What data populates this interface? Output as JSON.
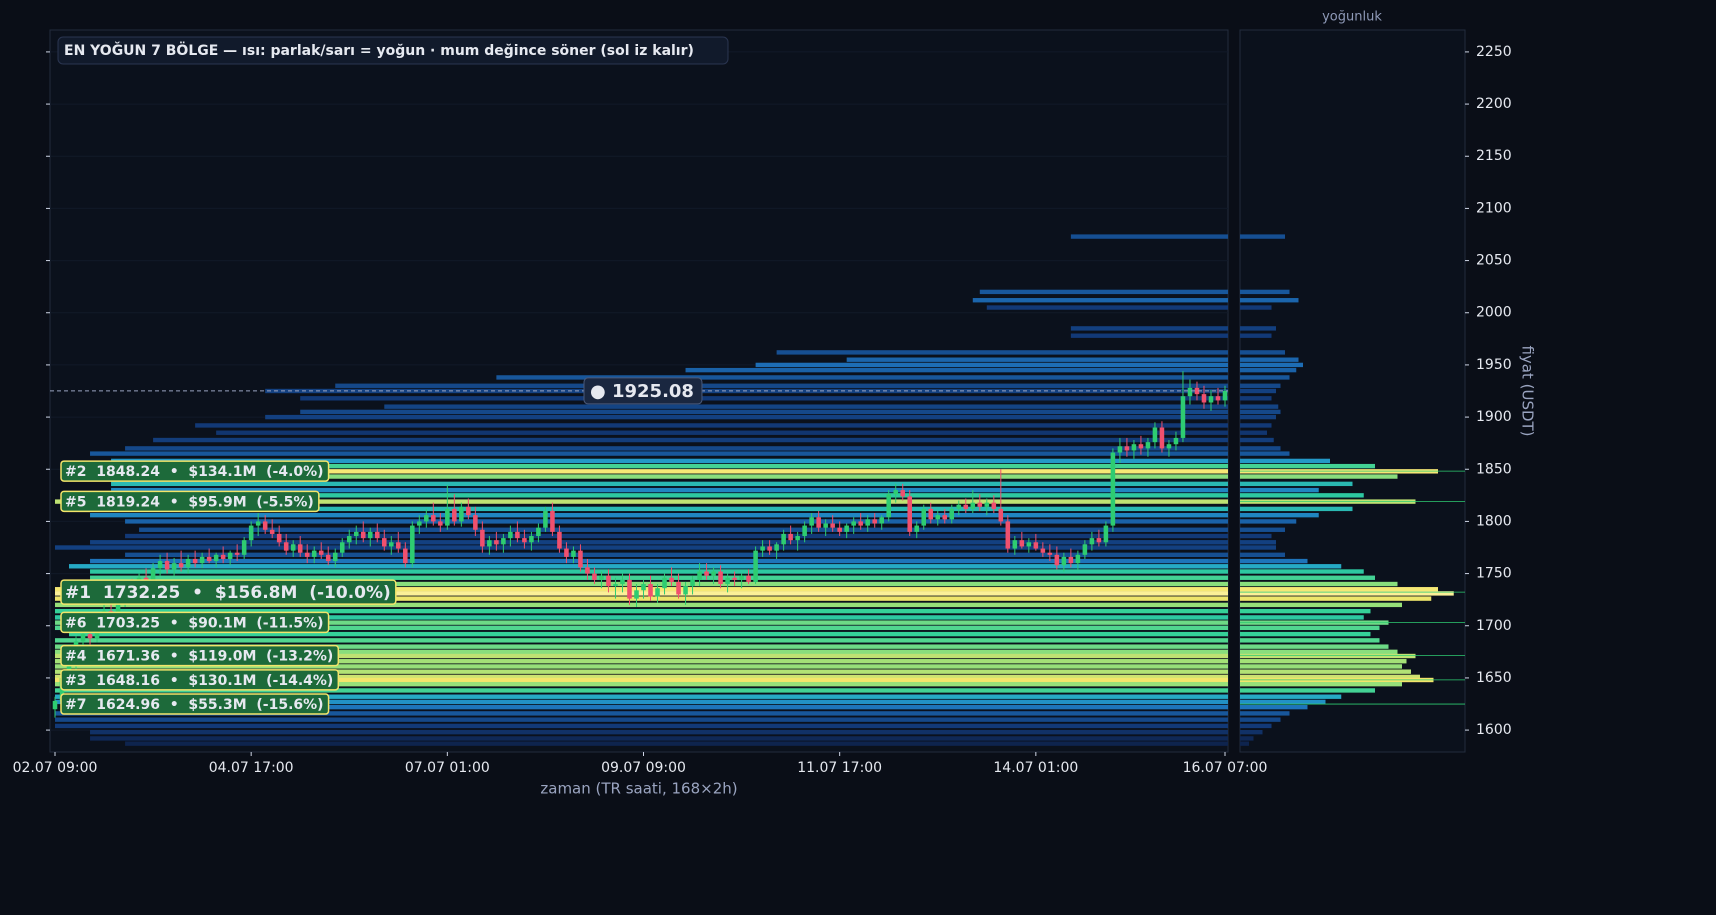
{
  "chart_data": {
    "type": "candlestick",
    "title": "EN YOĞUN 7 BÖLGE — ısı: parlak/sarı = yoğun · mum değince söner (sol iz kalır)",
    "x_label": "zaman (TR saati, 168×2h)",
    "y_label": "fiyat (USDT)",
    "profile_title": "yoğunluk",
    "up_color": "#2ecc71",
    "down_color": "#f0506e",
    "colormap": [
      "#0d1b3d",
      "#123a78",
      "#1d6fb8",
      "#24a3cc",
      "#2fcf9a",
      "#93e07a",
      "#f3e56a",
      "#fff6b0"
    ],
    "xlim": [
      0,
      167
    ],
    "xticks": [
      {
        "value": 0,
        "label": "02.07 09:00"
      },
      {
        "value": 28,
        "label": "04.07 17:00"
      },
      {
        "value": 56,
        "label": "07.07 01:00"
      },
      {
        "value": 84,
        "label": "09.07 09:00"
      },
      {
        "value": 112,
        "label": "11.07 17:00"
      },
      {
        "value": 140,
        "label": "14.07 01:00"
      },
      {
        "value": 167,
        "label": "16.07 07:00"
      }
    ],
    "ylim": [
      1579,
      2271
    ],
    "yticks": [
      1600,
      1650,
      1700,
      1750,
      1800,
      1850,
      1900,
      1950,
      2000,
      2050,
      2100,
      2150,
      2200,
      2250
    ],
    "profile_xlim": [
      0,
      100
    ],
    "candles": [
      [
        1620,
        1632,
        1612,
        1628
      ],
      [
        1628,
        1655,
        1625,
        1650
      ],
      [
        1650,
        1668,
        1645,
        1662
      ],
      [
        1662,
        1690,
        1655,
        1685
      ],
      [
        1685,
        1700,
        1676,
        1692
      ],
      [
        1692,
        1702,
        1680,
        1688
      ],
      [
        1688,
        1712,
        1684,
        1706
      ],
      [
        1706,
        1720,
        1698,
        1714
      ],
      [
        1714,
        1728,
        1705,
        1710
      ],
      [
        1710,
        1730,
        1702,
        1724
      ],
      [
        1724,
        1742,
        1718,
        1736
      ],
      [
        1736,
        1745,
        1722,
        1728
      ],
      [
        1728,
        1750,
        1724,
        1746
      ],
      [
        1746,
        1755,
        1735,
        1740
      ],
      [
        1740,
        1760,
        1736,
        1755
      ],
      [
        1755,
        1768,
        1748,
        1762
      ],
      [
        1762,
        1770,
        1750,
        1754
      ],
      [
        1754,
        1765,
        1748,
        1760
      ],
      [
        1760,
        1772,
        1752,
        1756
      ],
      [
        1756,
        1768,
        1750,
        1764
      ],
      [
        1764,
        1772,
        1756,
        1760
      ],
      [
        1760,
        1770,
        1755,
        1766
      ],
      [
        1766,
        1774,
        1760,
        1762
      ],
      [
        1762,
        1770,
        1756,
        1768
      ],
      [
        1768,
        1776,
        1760,
        1764
      ],
      [
        1764,
        1772,
        1758,
        1770
      ],
      [
        1770,
        1778,
        1762,
        1768
      ],
      [
        1768,
        1785,
        1764,
        1782
      ],
      [
        1782,
        1800,
        1776,
        1796
      ],
      [
        1796,
        1808,
        1786,
        1800
      ],
      [
        1800,
        1806,
        1788,
        1792
      ],
      [
        1792,
        1802,
        1784,
        1788
      ],
      [
        1788,
        1796,
        1776,
        1780
      ],
      [
        1780,
        1788,
        1768,
        1772
      ],
      [
        1772,
        1782,
        1766,
        1778
      ],
      [
        1778,
        1786,
        1766,
        1770
      ],
      [
        1770,
        1778,
        1760,
        1766
      ],
      [
        1766,
        1776,
        1760,
        1772
      ],
      [
        1772,
        1780,
        1764,
        1768
      ],
      [
        1768,
        1776,
        1758,
        1762
      ],
      [
        1762,
        1774,
        1756,
        1770
      ],
      [
        1770,
        1784,
        1766,
        1780
      ],
      [
        1780,
        1792,
        1774,
        1786
      ],
      [
        1786,
        1796,
        1778,
        1790
      ],
      [
        1790,
        1800,
        1780,
        1784
      ],
      [
        1784,
        1794,
        1776,
        1790
      ],
      [
        1790,
        1798,
        1780,
        1784
      ],
      [
        1784,
        1792,
        1772,
        1776
      ],
      [
        1776,
        1786,
        1768,
        1780
      ],
      [
        1780,
        1790,
        1770,
        1774
      ],
      [
        1774,
        1780,
        1756,
        1760
      ],
      [
        1760,
        1800,
        1756,
        1796
      ],
      [
        1796,
        1806,
        1788,
        1800
      ],
      [
        1800,
        1812,
        1794,
        1806
      ],
      [
        1806,
        1818,
        1796,
        1800
      ],
      [
        1800,
        1808,
        1790,
        1796
      ],
      [
        1796,
        1835,
        1792,
        1812
      ],
      [
        1812,
        1826,
        1796,
        1800
      ],
      [
        1800,
        1818,
        1795,
        1814
      ],
      [
        1814,
        1822,
        1802,
        1806
      ],
      [
        1806,
        1814,
        1786,
        1792
      ],
      [
        1792,
        1800,
        1770,
        1776
      ],
      [
        1776,
        1786,
        1768,
        1782
      ],
      [
        1782,
        1790,
        1772,
        1778
      ],
      [
        1778,
        1788,
        1770,
        1784
      ],
      [
        1784,
        1796,
        1776,
        1790
      ],
      [
        1790,
        1800,
        1780,
        1784
      ],
      [
        1784,
        1792,
        1774,
        1780
      ],
      [
        1780,
        1790,
        1772,
        1786
      ],
      [
        1786,
        1798,
        1780,
        1794
      ],
      [
        1794,
        1814,
        1790,
        1810
      ],
      [
        1810,
        1818,
        1786,
        1790
      ],
      [
        1790,
        1796,
        1770,
        1774
      ],
      [
        1774,
        1780,
        1760,
        1766
      ],
      [
        1766,
        1776,
        1760,
        1772
      ],
      [
        1772,
        1778,
        1752,
        1756
      ],
      [
        1756,
        1764,
        1744,
        1750
      ],
      [
        1750,
        1756,
        1740,
        1744
      ],
      [
        1744,
        1752,
        1736,
        1748
      ],
      [
        1748,
        1754,
        1732,
        1738
      ],
      [
        1738,
        1746,
        1726,
        1740
      ],
      [
        1740,
        1750,
        1732,
        1744
      ],
      [
        1744,
        1750,
        1720,
        1726
      ],
      [
        1726,
        1740,
        1718,
        1734
      ],
      [
        1734,
        1744,
        1726,
        1740
      ],
      [
        1740,
        1748,
        1724,
        1728
      ],
      [
        1728,
        1740,
        1722,
        1736
      ],
      [
        1736,
        1750,
        1730,
        1746
      ],
      [
        1746,
        1756,
        1738,
        1742
      ],
      [
        1742,
        1750,
        1726,
        1730
      ],
      [
        1730,
        1742,
        1720,
        1738
      ],
      [
        1738,
        1748,
        1730,
        1744
      ],
      [
        1744,
        1760,
        1738,
        1752
      ],
      [
        1752,
        1760,
        1744,
        1748
      ],
      [
        1748,
        1756,
        1740,
        1752
      ],
      [
        1752,
        1758,
        1736,
        1740
      ],
      [
        1740,
        1750,
        1732,
        1746
      ],
      [
        1746,
        1752,
        1738,
        1744
      ],
      [
        1744,
        1750,
        1736,
        1748
      ],
      [
        1748,
        1754,
        1740,
        1742
      ],
      [
        1742,
        1776,
        1740,
        1772
      ],
      [
        1772,
        1782,
        1766,
        1776
      ],
      [
        1776,
        1782,
        1768,
        1772
      ],
      [
        1772,
        1780,
        1764,
        1778
      ],
      [
        1778,
        1792,
        1772,
        1788
      ],
      [
        1788,
        1796,
        1778,
        1782
      ],
      [
        1782,
        1790,
        1772,
        1786
      ],
      [
        1786,
        1800,
        1780,
        1796
      ],
      [
        1796,
        1808,
        1788,
        1804
      ],
      [
        1804,
        1810,
        1790,
        1794
      ],
      [
        1794,
        1802,
        1786,
        1798
      ],
      [
        1798,
        1806,
        1790,
        1794
      ],
      [
        1794,
        1800,
        1786,
        1790
      ],
      [
        1790,
        1798,
        1784,
        1796
      ],
      [
        1796,
        1804,
        1788,
        1800
      ],
      [
        1800,
        1808,
        1792,
        1796
      ],
      [
        1796,
        1806,
        1790,
        1802
      ],
      [
        1802,
        1808,
        1794,
        1798
      ],
      [
        1798,
        1806,
        1792,
        1804
      ],
      [
        1804,
        1830,
        1800,
        1826
      ],
      [
        1826,
        1836,
        1818,
        1830
      ],
      [
        1830,
        1836,
        1820,
        1824
      ],
      [
        1824,
        1830,
        1786,
        1790
      ],
      [
        1790,
        1800,
        1784,
        1796
      ],
      [
        1796,
        1816,
        1792,
        1812
      ],
      [
        1812,
        1818,
        1798,
        1802
      ],
      [
        1802,
        1810,
        1796,
        1806
      ],
      [
        1806,
        1812,
        1798,
        1802
      ],
      [
        1802,
        1816,
        1798,
        1812
      ],
      [
        1812,
        1820,
        1806,
        1816
      ],
      [
        1816,
        1822,
        1808,
        1812
      ],
      [
        1812,
        1830,
        1808,
        1818
      ],
      [
        1818,
        1826,
        1810,
        1814
      ],
      [
        1814,
        1822,
        1806,
        1818
      ],
      [
        1818,
        1825,
        1808,
        1812
      ],
      [
        1812,
        1850,
        1796,
        1800
      ],
      [
        1800,
        1806,
        1770,
        1774
      ],
      [
        1774,
        1786,
        1768,
        1782
      ],
      [
        1782,
        1790,
        1774,
        1776
      ],
      [
        1776,
        1784,
        1770,
        1780
      ],
      [
        1780,
        1788,
        1772,
        1774
      ],
      [
        1774,
        1780,
        1766,
        1770
      ],
      [
        1770,
        1778,
        1762,
        1768
      ],
      [
        1768,
        1776,
        1754,
        1758
      ],
      [
        1758,
        1770,
        1752,
        1766
      ],
      [
        1766,
        1774,
        1756,
        1760
      ],
      [
        1760,
        1772,
        1754,
        1768
      ],
      [
        1768,
        1782,
        1764,
        1778
      ],
      [
        1778,
        1790,
        1772,
        1784
      ],
      [
        1784,
        1792,
        1776,
        1780
      ],
      [
        1780,
        1800,
        1776,
        1796
      ],
      [
        1796,
        1870,
        1790,
        1866
      ],
      [
        1866,
        1880,
        1856,
        1872
      ],
      [
        1872,
        1880,
        1862,
        1868
      ],
      [
        1868,
        1878,
        1860,
        1874
      ],
      [
        1874,
        1882,
        1864,
        1870
      ],
      [
        1870,
        1880,
        1862,
        1876
      ],
      [
        1876,
        1895,
        1870,
        1890
      ],
      [
        1890,
        1896,
        1866,
        1870
      ],
      [
        1870,
        1878,
        1862,
        1874
      ],
      [
        1874,
        1886,
        1868,
        1880
      ],
      [
        1880,
        1944,
        1876,
        1920
      ],
      [
        1920,
        1936,
        1912,
        1928
      ],
      [
        1928,
        1934,
        1916,
        1922
      ],
      [
        1922,
        1930,
        1908,
        1914
      ],
      [
        1914,
        1926,
        1906,
        1920
      ],
      [
        1920,
        1928,
        1912,
        1916
      ],
      [
        1916,
        1930,
        1910,
        1925.08
      ]
    ],
    "levels": [
      [
        2073,
        145,
        20
      ],
      [
        2020,
        132,
        22
      ],
      [
        2012,
        131,
        26
      ],
      [
        2005,
        133,
        14
      ],
      [
        1985,
        145,
        16
      ],
      [
        1978,
        145,
        14
      ],
      [
        1962,
        103,
        20
      ],
      [
        1955,
        113,
        26
      ],
      [
        1950,
        100,
        28
      ],
      [
        1945,
        90,
        25
      ],
      [
        1938,
        63,
        22
      ],
      [
        1930,
        40,
        18
      ],
      [
        1925,
        30,
        16
      ],
      [
        1918,
        35,
        14
      ],
      [
        1910,
        47,
        17
      ],
      [
        1905,
        35,
        18
      ],
      [
        1900,
        30,
        16
      ],
      [
        1892,
        20,
        14
      ],
      [
        1885,
        23,
        12
      ],
      [
        1878,
        14,
        15
      ],
      [
        1870,
        10,
        18
      ],
      [
        1865,
        5,
        22
      ],
      [
        1858,
        8,
        40
      ],
      [
        1853,
        5,
        60
      ],
      [
        1848,
        2,
        88
      ],
      [
        1843,
        5,
        70
      ],
      [
        1836,
        8,
        50
      ],
      [
        1830,
        8,
        35
      ],
      [
        1825,
        12,
        55
      ],
      [
        1819,
        0,
        78
      ],
      [
        1812,
        8,
        50
      ],
      [
        1806,
        5,
        35
      ],
      [
        1800,
        10,
        25
      ],
      [
        1792,
        12,
        20
      ],
      [
        1786,
        10,
        14
      ],
      [
        1780,
        5,
        16
      ],
      [
        1775,
        0,
        16
      ],
      [
        1768,
        10,
        20
      ],
      [
        1762,
        5,
        30
      ],
      [
        1757,
        2,
        45
      ],
      [
        1752,
        5,
        55
      ],
      [
        1746,
        5,
        60
      ],
      [
        1740,
        2,
        70
      ],
      [
        1735,
        0,
        88
      ],
      [
        1731,
        0,
        95
      ],
      [
        1726,
        0,
        85
      ],
      [
        1720,
        0,
        72
      ],
      [
        1714,
        0,
        58
      ],
      [
        1708,
        0,
        55
      ],
      [
        1703,
        0,
        66
      ],
      [
        1698,
        0,
        62
      ],
      [
        1692,
        2,
        58
      ],
      [
        1686,
        0,
        62
      ],
      [
        1680,
        0,
        66
      ],
      [
        1675,
        0,
        70
      ],
      [
        1671,
        0,
        78
      ],
      [
        1666,
        0,
        74
      ],
      [
        1661,
        0,
        72
      ],
      [
        1656,
        0,
        76
      ],
      [
        1651,
        0,
        80
      ],
      [
        1648,
        0,
        86
      ],
      [
        1644,
        0,
        72
      ],
      [
        1638,
        0,
        60
      ],
      [
        1632,
        0,
        45
      ],
      [
        1627,
        0,
        38
      ],
      [
        1622,
        2,
        30
      ],
      [
        1616,
        0,
        22
      ],
      [
        1610,
        0,
        18
      ],
      [
        1604,
        0,
        14
      ],
      [
        1598,
        5,
        10
      ],
      [
        1592,
        5,
        6
      ],
      [
        1587,
        10,
        4
      ]
    ],
    "zones": [
      {
        "price": 1848.24,
        "label": "#2  1848.24  •  $134.1M  (-4.0%)"
      },
      {
        "price": 1819.24,
        "label": "#5  1819.24  •  $95.9M  (-5.5%)"
      },
      {
        "price": 1732.25,
        "label": "#1  1732.25  •  $156.8M  (-10.0%)"
      },
      {
        "price": 1703.25,
        "label": "#6  1703.25  •  $90.1M  (-11.5%)"
      },
      {
        "price": 1671.36,
        "label": "#4  1671.36  •  $119.0M  (-13.2%)"
      },
      {
        "price": 1648.16,
        "label": "#3  1648.16  •  $130.1M  (-14.4%)"
      },
      {
        "price": 1624.96,
        "label": "#7  1624.96  •  $55.3M  (-15.6%)"
      }
    ],
    "current": {
      "value": 1925.08,
      "label": "● 1925.08"
    }
  }
}
